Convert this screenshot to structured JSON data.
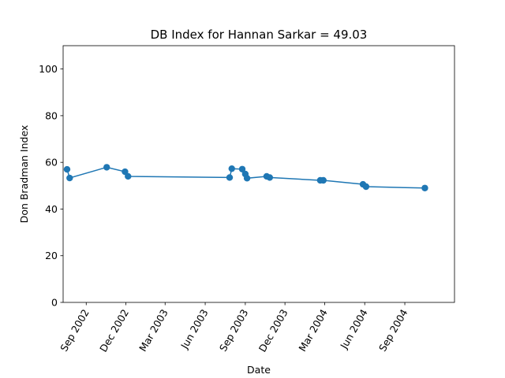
{
  "chart_data": {
    "type": "line",
    "title": "DB Index for Hannan Sarkar = 49.03",
    "xlabel": "Date",
    "ylabel": "Don Bradman Index",
    "ylim": [
      0,
      110
    ],
    "xlim": [
      "2002-07-10",
      "2004-12-24"
    ],
    "x_ticks": [
      "2002-09-01",
      "2002-12-01",
      "2003-03-01",
      "2003-06-01",
      "2003-09-01",
      "2003-12-01",
      "2004-03-01",
      "2004-06-01",
      "2004-09-01"
    ],
    "x_tick_labels": [
      "Sep 2002",
      "Dec 2002",
      "Mar 2003",
      "Jun 2003",
      "Sep 2003",
      "Dec 2003",
      "Mar 2004",
      "Jun 2004",
      "Sep 2004"
    ],
    "y_ticks": [
      0,
      20,
      40,
      60,
      80,
      100
    ],
    "grid": false,
    "color": "#1f77b4",
    "series": [
      {
        "x": [
          "2002-07-19",
          "2002-07-25",
          "2002-10-18",
          "2002-11-29",
          "2002-12-06",
          "2003-07-27",
          "2003-08-01",
          "2003-08-25",
          "2003-09-01",
          "2003-09-05",
          "2003-10-20",
          "2003-10-27",
          "2004-02-20",
          "2004-02-27",
          "2004-05-28",
          "2004-06-04",
          "2004-10-17"
        ],
        "y": [
          57.0,
          53.3,
          57.9,
          56.0,
          54.0,
          53.5,
          57.3,
          57.1,
          55.0,
          53.2,
          54.0,
          53.5,
          52.3,
          52.3,
          50.6,
          49.6,
          49.0
        ]
      }
    ]
  }
}
